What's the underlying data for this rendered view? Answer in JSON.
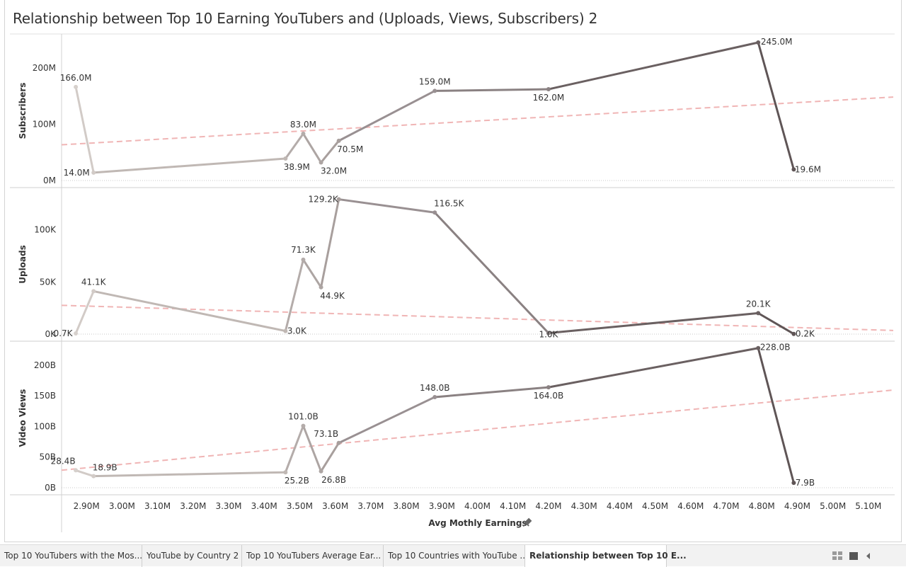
{
  "title": "Relationship between Top 10 Earning YouTubers and (Uploads, Views, Subscribers) 2",
  "chart_data": {
    "type": "line",
    "xlabel": "Avg Mothly Earnings",
    "x_ticks": [
      "2.90M",
      "3.00M",
      "3.10M",
      "3.20M",
      "3.30M",
      "3.40M",
      "3.50M",
      "3.60M",
      "3.70M",
      "3.80M",
      "3.90M",
      "4.00M",
      "4.10M",
      "4.20M",
      "4.30M",
      "4.40M",
      "4.50M",
      "4.60M",
      "4.70M",
      "4.80M",
      "4.90M",
      "5.00M",
      "5.10M"
    ],
    "x_ticks_value": [
      2.9,
      3.0,
      3.1,
      3.2,
      3.3,
      3.4,
      3.5,
      3.6,
      3.7,
      3.8,
      3.9,
      4.0,
      4.1,
      4.2,
      4.3,
      4.4,
      4.5,
      4.6,
      4.7,
      4.8,
      4.9,
      5.0,
      5.1
    ],
    "xlim": [
      2.83,
      5.17
    ],
    "x": [
      2.87,
      2.92,
      3.46,
      3.51,
      3.56,
      3.61,
      3.88,
      4.2,
      4.79,
      4.89
    ],
    "point_colors": [
      "#d6d0cc",
      "#d2cbc7",
      "#c0b8b4",
      "#b4acaa",
      "#ada5a3",
      "#a89f9d",
      "#999092",
      "#8a8182",
      "#6a6061",
      "#5f5556"
    ],
    "trend_color": "#f0b5b5",
    "panels": [
      {
        "ylabel": "Subscribers",
        "ylim": [
          0,
          250
        ],
        "y_ticks": [
          "0M",
          "100M",
          "200M"
        ],
        "y_ticks_value": [
          0,
          100,
          200
        ],
        "values": [
          166.0,
          14.0,
          38.9,
          83.0,
          32.0,
          70.5,
          159.0,
          162.0,
          245.0,
          19.6
        ],
        "labels": [
          "166.0M",
          "14.0M",
          "38.9M",
          "83.0M",
          "32.0M",
          "70.5M",
          "159.0M",
          "162.0M",
          "245.0M",
          "19.6M"
        ],
        "trend": [
          63.4,
          148.1
        ]
      },
      {
        "ylabel": "Uploads",
        "ylim": [
          0,
          135
        ],
        "y_ticks": [
          "0K",
          "50K",
          "100K"
        ],
        "y_ticks_value": [
          0,
          50,
          100
        ],
        "values": [
          0.7,
          41.1,
          3.0,
          71.3,
          44.9,
          129.2,
          116.5,
          1.0,
          20.1,
          0.2
        ],
        "labels": [
          "0.7K",
          "41.1K",
          "3.0K",
          "71.3K",
          "44.9K",
          "129.2K",
          "116.5K",
          "1.0K",
          "20.1K",
          "0.2K"
        ],
        "trend": [
          27.6,
          3.5
        ]
      },
      {
        "ylabel": "Video Views",
        "ylim": [
          0,
          230
        ],
        "y_ticks": [
          "0B",
          "50B",
          "100B",
          "150B",
          "200B"
        ],
        "y_ticks_value": [
          0,
          50,
          100,
          150,
          200
        ],
        "values": [
          28.4,
          18.9,
          25.2,
          101.0,
          26.8,
          73.1,
          148.0,
          164.0,
          228.0,
          7.9
        ],
        "labels": [
          "28.4B",
          "18.9B",
          "25.2B",
          "101.0B",
          "26.8B",
          "73.1B",
          "148.0B",
          "164.0B",
          "228.0B",
          "7.9B"
        ],
        "trend": [
          28.6,
          159.5
        ]
      }
    ]
  },
  "tabs": [
    {
      "label": "Top 10 YouTubers with the Mos..."
    },
    {
      "label": "YouTube by Country 2"
    },
    {
      "label": "Top 10 YouTubers Average Ear..."
    },
    {
      "label": "Top 10 Countries with YouTube ..."
    },
    {
      "label": "Relationship between Top 10 E..."
    }
  ]
}
